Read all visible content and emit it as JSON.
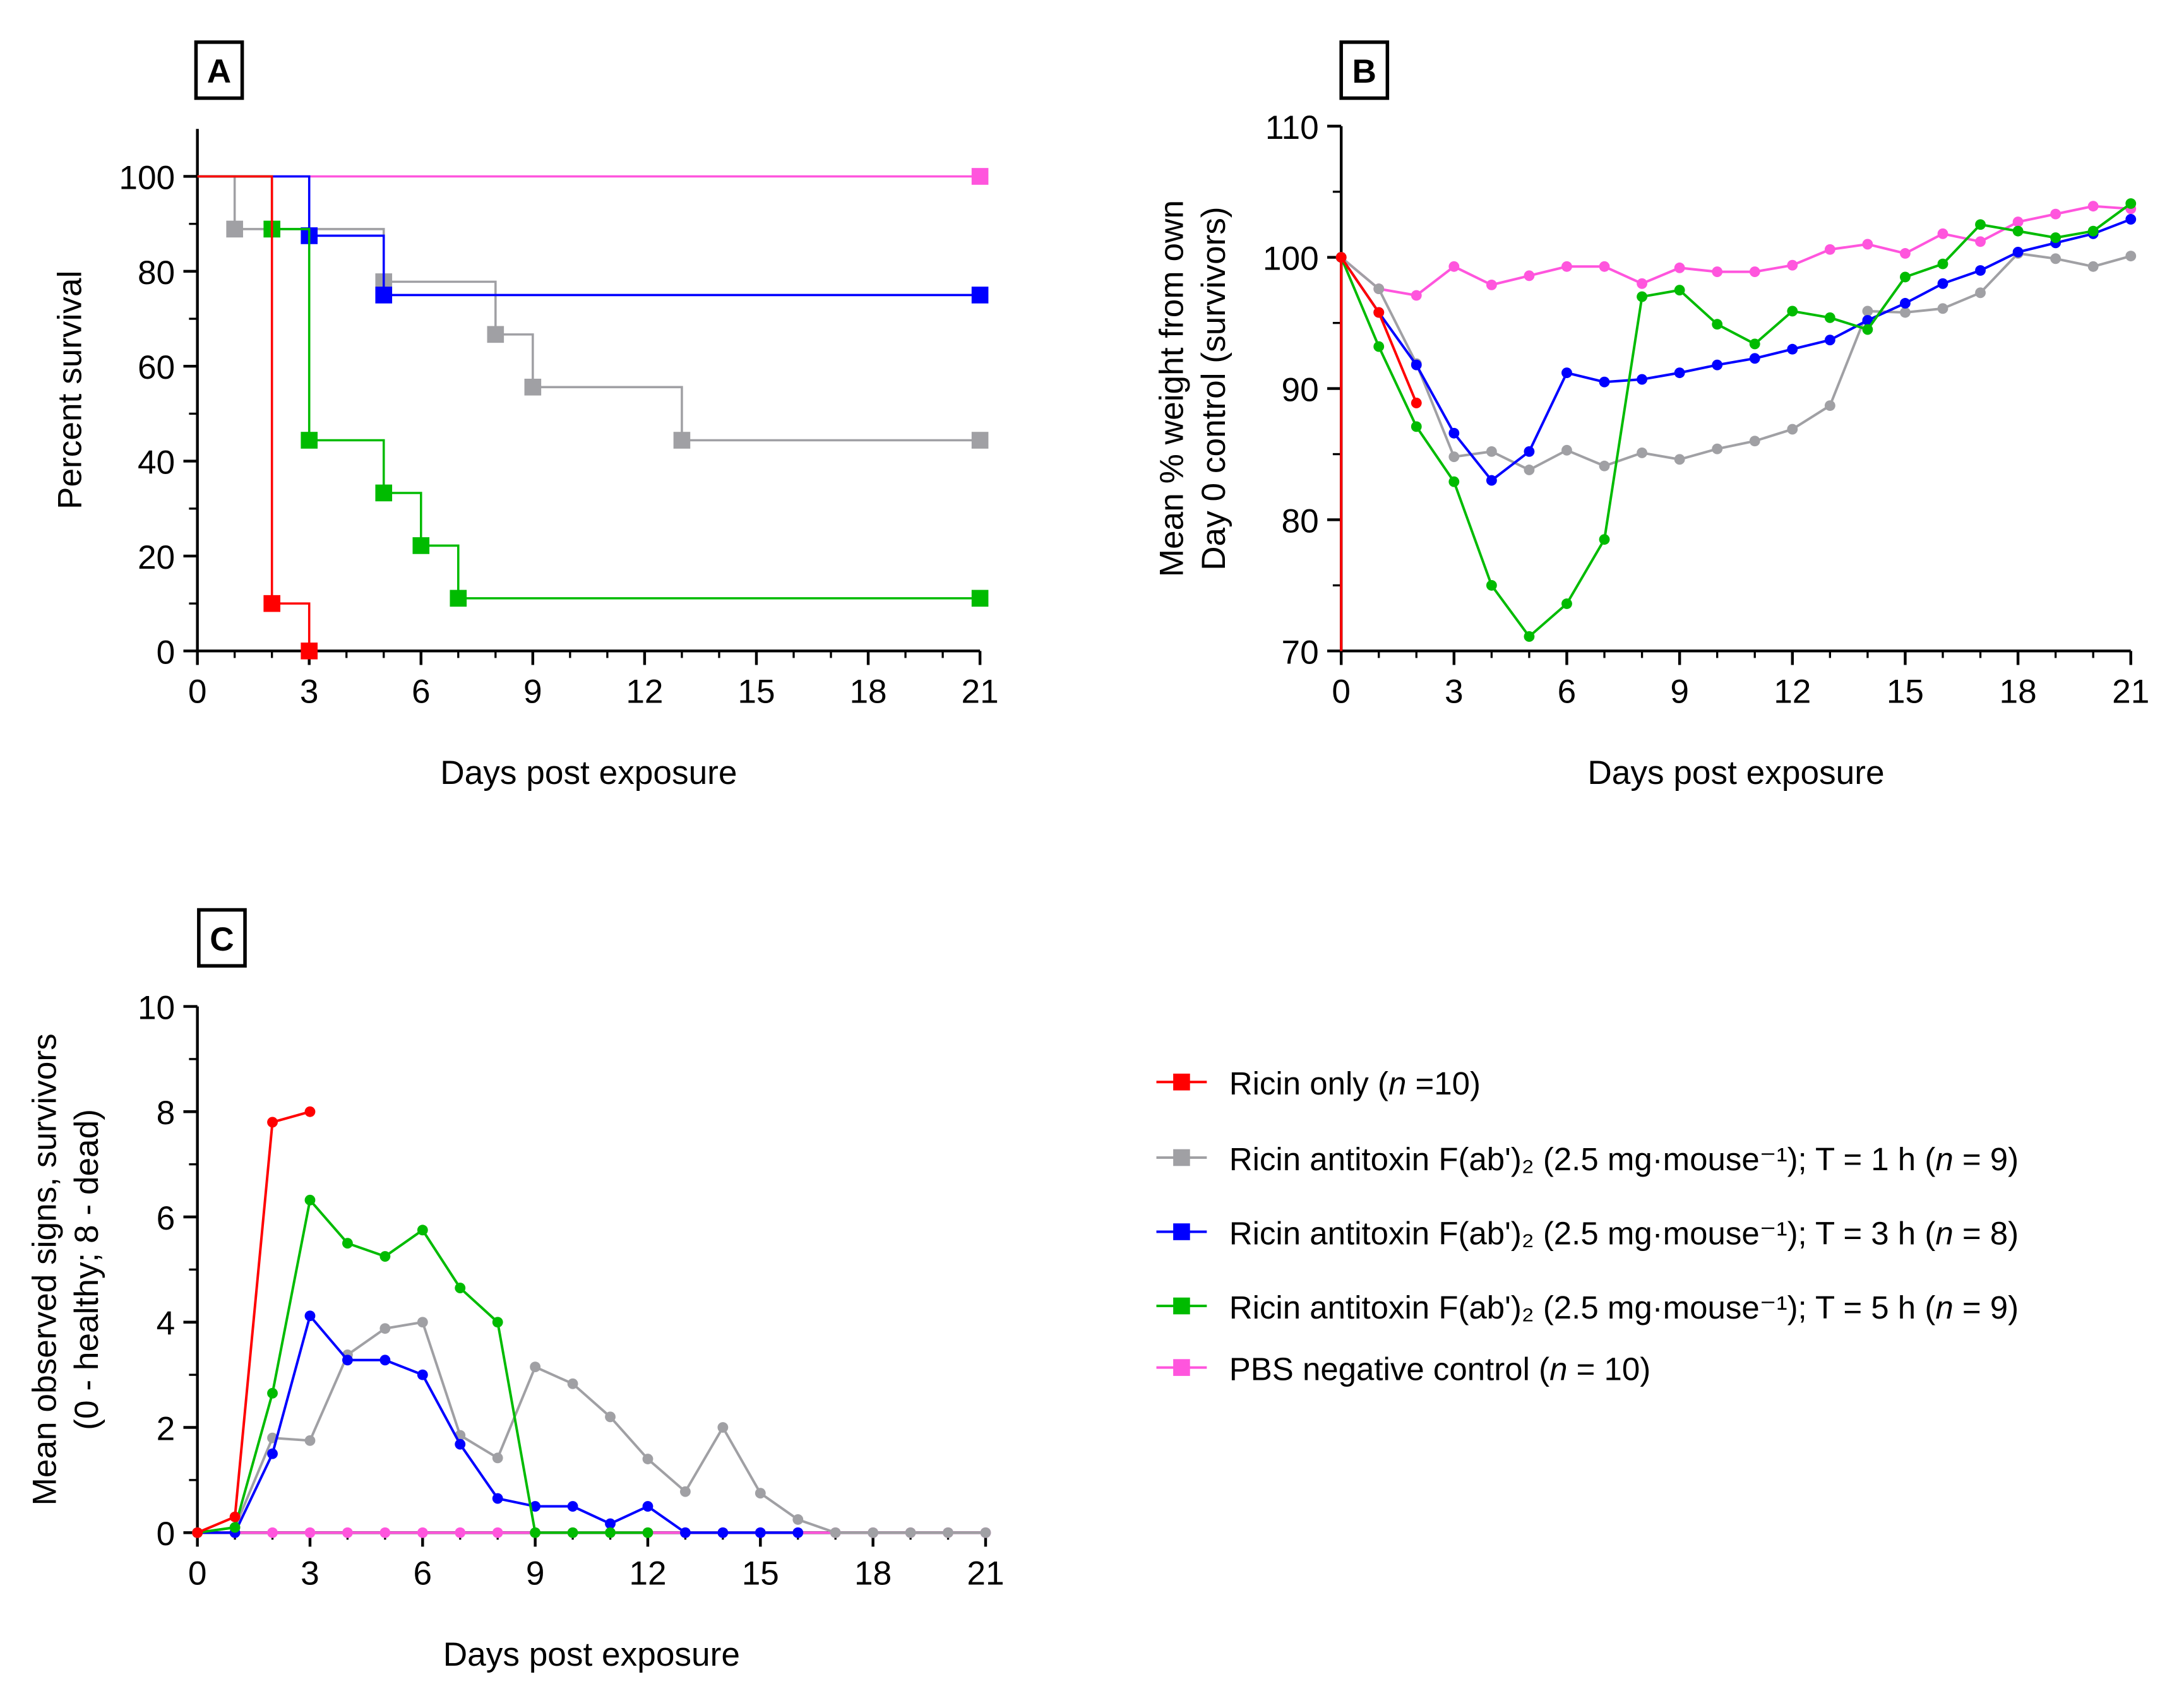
{
  "colors": {
    "red": "#ff0000",
    "gray": "#a0a0a4",
    "blue": "#0000ff",
    "green": "#00bb00",
    "pink": "#ff55dd"
  },
  "chart_data": [
    {
      "panel": "A",
      "type": "line",
      "step": true,
      "xlabel": "Days post exposure",
      "ylabel": "Percent survival",
      "xlim": [
        0,
        21
      ],
      "ylim": [
        0,
        110
      ],
      "xticks": [
        0,
        3,
        6,
        9,
        12,
        15,
        18,
        21
      ],
      "yticks": [
        0,
        20,
        40,
        60,
        80,
        100
      ],
      "series": [
        {
          "name": "PBS negative control",
          "color": "pink",
          "steps": [
            [
              0,
              100
            ],
            [
              21,
              100
            ]
          ],
          "markers": [
            [
              21,
              100
            ]
          ]
        },
        {
          "name": "Ricin antitoxin T = 1 h",
          "color": "gray",
          "steps": [
            [
              0,
              100
            ],
            [
              1,
              88.9
            ],
            [
              5,
              77.8
            ],
            [
              8,
              66.7
            ],
            [
              9,
              55.6
            ],
            [
              13,
              44.4
            ],
            [
              21,
              44.4
            ]
          ],
          "markers": [
            [
              1,
              88.9
            ],
            [
              5,
              77.8
            ],
            [
              8,
              66.7
            ],
            [
              9,
              55.6
            ],
            [
              13,
              44.4
            ],
            [
              21,
              44.4
            ]
          ]
        },
        {
          "name": "Ricin antitoxin T = 3 h",
          "color": "blue",
          "steps": [
            [
              0,
              100
            ],
            [
              3,
              87.5
            ],
            [
              5,
              75
            ],
            [
              21,
              75
            ]
          ],
          "markers": [
            [
              3,
              87.5
            ],
            [
              5,
              75
            ],
            [
              21,
              75
            ]
          ]
        },
        {
          "name": "Ricin antitoxin T = 5 h",
          "color": "green",
          "steps": [
            [
              0,
              100
            ],
            [
              2,
              88.9
            ],
            [
              3,
              44.4
            ],
            [
              5,
              33.3
            ],
            [
              6,
              22.2
            ],
            [
              7,
              11.1
            ],
            [
              21,
              11.1
            ]
          ],
          "markers": [
            [
              2,
              88.9
            ],
            [
              3,
              44.4
            ],
            [
              5,
              33.3
            ],
            [
              6,
              22.2
            ],
            [
              7,
              11.1
            ],
            [
              21,
              11.1
            ]
          ]
        },
        {
          "name": "Ricin only",
          "color": "red",
          "steps": [
            [
              0,
              100
            ],
            [
              2,
              10
            ],
            [
              3,
              0
            ]
          ],
          "markers": [
            [
              2,
              10
            ],
            [
              3,
              0
            ]
          ]
        }
      ]
    },
    {
      "panel": "B",
      "type": "line",
      "xlabel": "Days post exposure",
      "ylabel": [
        "Mean % weight from own",
        "Day 0 control (survivors)"
      ],
      "xlim": [
        0,
        21
      ],
      "ylim": [
        70,
        110
      ],
      "xticks": [
        0,
        3,
        6,
        9,
        12,
        15,
        18,
        21
      ],
      "yticks": [
        70,
        80,
        90,
        100,
        110
      ],
      "series": [
        {
          "name": "PBS negative control",
          "color": "pink",
          "values": [
            100,
            97.6,
            97.1,
            99.3,
            97.9,
            98.6,
            99.3,
            99.3,
            98.0,
            99.2,
            98.9,
            98.9,
            99.4,
            100.6,
            101.0,
            100.3,
            101.8,
            101.2,
            102.7,
            103.3,
            103.9,
            103.7
          ]
        },
        {
          "name": "Ricin antitoxin T = 1 h",
          "color": "gray",
          "values": [
            100,
            97.6,
            91.9,
            84.8,
            85.2,
            83.8,
            85.3,
            84.1,
            85.1,
            84.6,
            85.4,
            86.0,
            86.9,
            88.7,
            95.9,
            95.8,
            96.1,
            97.3,
            100.3,
            99.9,
            99.3,
            100.1
          ]
        },
        {
          "name": "Ricin antitoxin T = 3 h",
          "color": "blue",
          "values": [
            100,
            95.8,
            91.8,
            86.6,
            83.0,
            85.2,
            91.2,
            90.5,
            90.7,
            91.2,
            91.8,
            92.3,
            93.0,
            93.7,
            95.2,
            96.5,
            98.0,
            99.0,
            100.4,
            101.1,
            101.8,
            102.9
          ]
        },
        {
          "name": "Ricin antitoxin T = 5 h",
          "color": "green",
          "values": [
            100,
            93.2,
            87.1,
            82.9,
            75.0,
            71.1,
            73.6,
            78.5,
            97.0,
            97.5,
            94.9,
            93.4,
            95.9,
            95.4,
            94.5,
            98.5,
            99.5,
            102.5,
            102.0,
            101.5,
            102.0,
            104.1
          ]
        },
        {
          "name": "Ricin only",
          "color": "red",
          "values": [
            100,
            95.8,
            88.9
          ]
        }
      ]
    },
    {
      "panel": "C",
      "type": "line",
      "xlabel": "Days post exposure",
      "ylabel": [
        "Mean observed signs, survivors",
        "(0 - healthy; 8 - dead)"
      ],
      "xlim": [
        0,
        21
      ],
      "ylim": [
        0,
        10
      ],
      "xticks": [
        0,
        3,
        6,
        9,
        12,
        15,
        18,
        21
      ],
      "yticks": [
        0,
        2,
        4,
        6,
        8,
        10
      ],
      "series": [
        {
          "name": "PBS negative control",
          "color": "pink",
          "values": [
            0,
            0,
            0,
            0,
            0,
            0,
            0,
            0,
            0,
            0,
            0,
            0,
            0,
            0,
            0,
            0,
            0,
            0,
            0,
            0,
            0,
            0
          ]
        },
        {
          "name": "Ricin antitoxin T = 1 h",
          "color": "gray",
          "values": [
            0,
            0.1,
            1.8,
            1.75,
            3.38,
            3.88,
            4.0,
            1.85,
            1.42,
            3.15,
            2.83,
            2.2,
            1.4,
            0.78,
            2.0,
            0.75,
            0.25,
            0,
            0,
            0,
            0,
            0
          ]
        },
        {
          "name": "Ricin antitoxin T = 3 h",
          "color": "blue",
          "values": [
            0,
            0,
            1.5,
            4.12,
            3.28,
            3.28,
            3.0,
            1.68,
            0.65,
            0.5,
            0.5,
            0.17,
            0.5,
            0,
            0,
            0,
            0
          ]
        },
        {
          "name": "Ricin antitoxin T = 5 h",
          "color": "green",
          "values": [
            0,
            0.1,
            2.65,
            6.32,
            5.5,
            5.25,
            5.75,
            4.65,
            4.0,
            0,
            0,
            0,
            0
          ]
        },
        {
          "name": "Ricin only",
          "color": "red",
          "values": [
            0,
            0.3,
            7.8,
            8.0
          ]
        }
      ]
    }
  ],
  "legend": [
    {
      "color": "red",
      "pre": "Ricin only (",
      "n": "n",
      "post": " =10)"
    },
    {
      "color": "gray",
      "pre": "Ricin antitoxin F(ab')₂ (2.5 mg·mouse⁻¹); T = 1 h (",
      "n": "n",
      "post": " = 9)"
    },
    {
      "color": "blue",
      "pre": "Ricin antitoxin F(ab')₂ (2.5 mg·mouse⁻¹); T = 3 h (",
      "n": "n",
      "post": " = 8)"
    },
    {
      "color": "green",
      "pre": "Ricin antitoxin F(ab')₂ (2.5 mg·mouse⁻¹); T = 5 h (",
      "n": "n",
      "post": " = 9)"
    },
    {
      "color": "pink",
      "pre": "PBS negative control (",
      "n": "n",
      "post": " = 10)"
    }
  ],
  "panel_labels": [
    "A",
    "B",
    "C"
  ]
}
